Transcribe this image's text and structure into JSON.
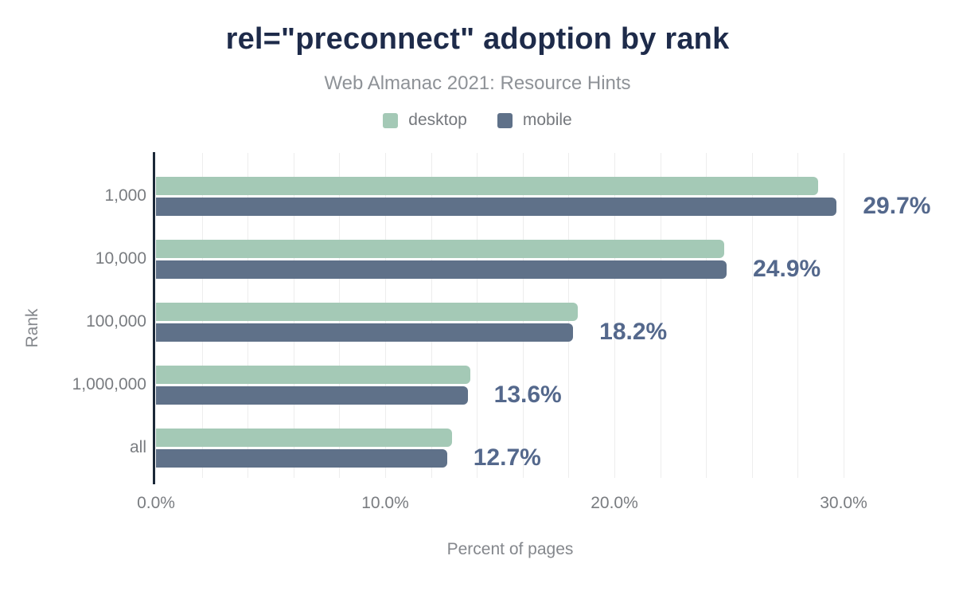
{
  "chart": {
    "title": "rel=\"preconnect\" adoption by rank",
    "subtitle": "Web Almanac 2021: Resource Hints",
    "xlabel": "Percent of pages",
    "ylabel": "Rank"
  },
  "chart_data": {
    "type": "bar",
    "orientation": "horizontal",
    "title": "rel=\"preconnect\" adoption by rank",
    "subtitle": "Web Almanac 2021: Resource Hints",
    "xlabel": "Percent of pages",
    "ylabel": "Rank",
    "categories": [
      "1,000",
      "10,000",
      "100,000",
      "1,000,000",
      "all"
    ],
    "series": [
      {
        "name": "desktop",
        "color": "#a4c9b6",
        "values": [
          28.9,
          24.8,
          18.4,
          13.7,
          12.9
        ]
      },
      {
        "name": "mobile",
        "color": "#5f7189",
        "values": [
          29.7,
          24.9,
          18.2,
          13.6,
          12.7
        ]
      }
    ],
    "bar_labels": [
      "29.7%",
      "24.9%",
      "18.2%",
      "13.6%",
      "12.7%"
    ],
    "bar_labels_follow_series": "mobile",
    "xlim": [
      0,
      32.5
    ],
    "xticks": {
      "values": [
        0,
        10,
        20,
        30
      ],
      "labels": [
        "0.0%",
        "10.0%",
        "20.0%",
        "30.0%"
      ]
    },
    "grid": {
      "step_pct": 2,
      "max_pct": 30,
      "color": "#ededed",
      "orientation": "vertical"
    },
    "legend_position": "top",
    "colors": {
      "title": "#1e2b4a",
      "subtitle": "#8e9297",
      "axis_text": "#797c80",
      "value_label": "#54688c",
      "axis_line": "#1b2838"
    }
  }
}
